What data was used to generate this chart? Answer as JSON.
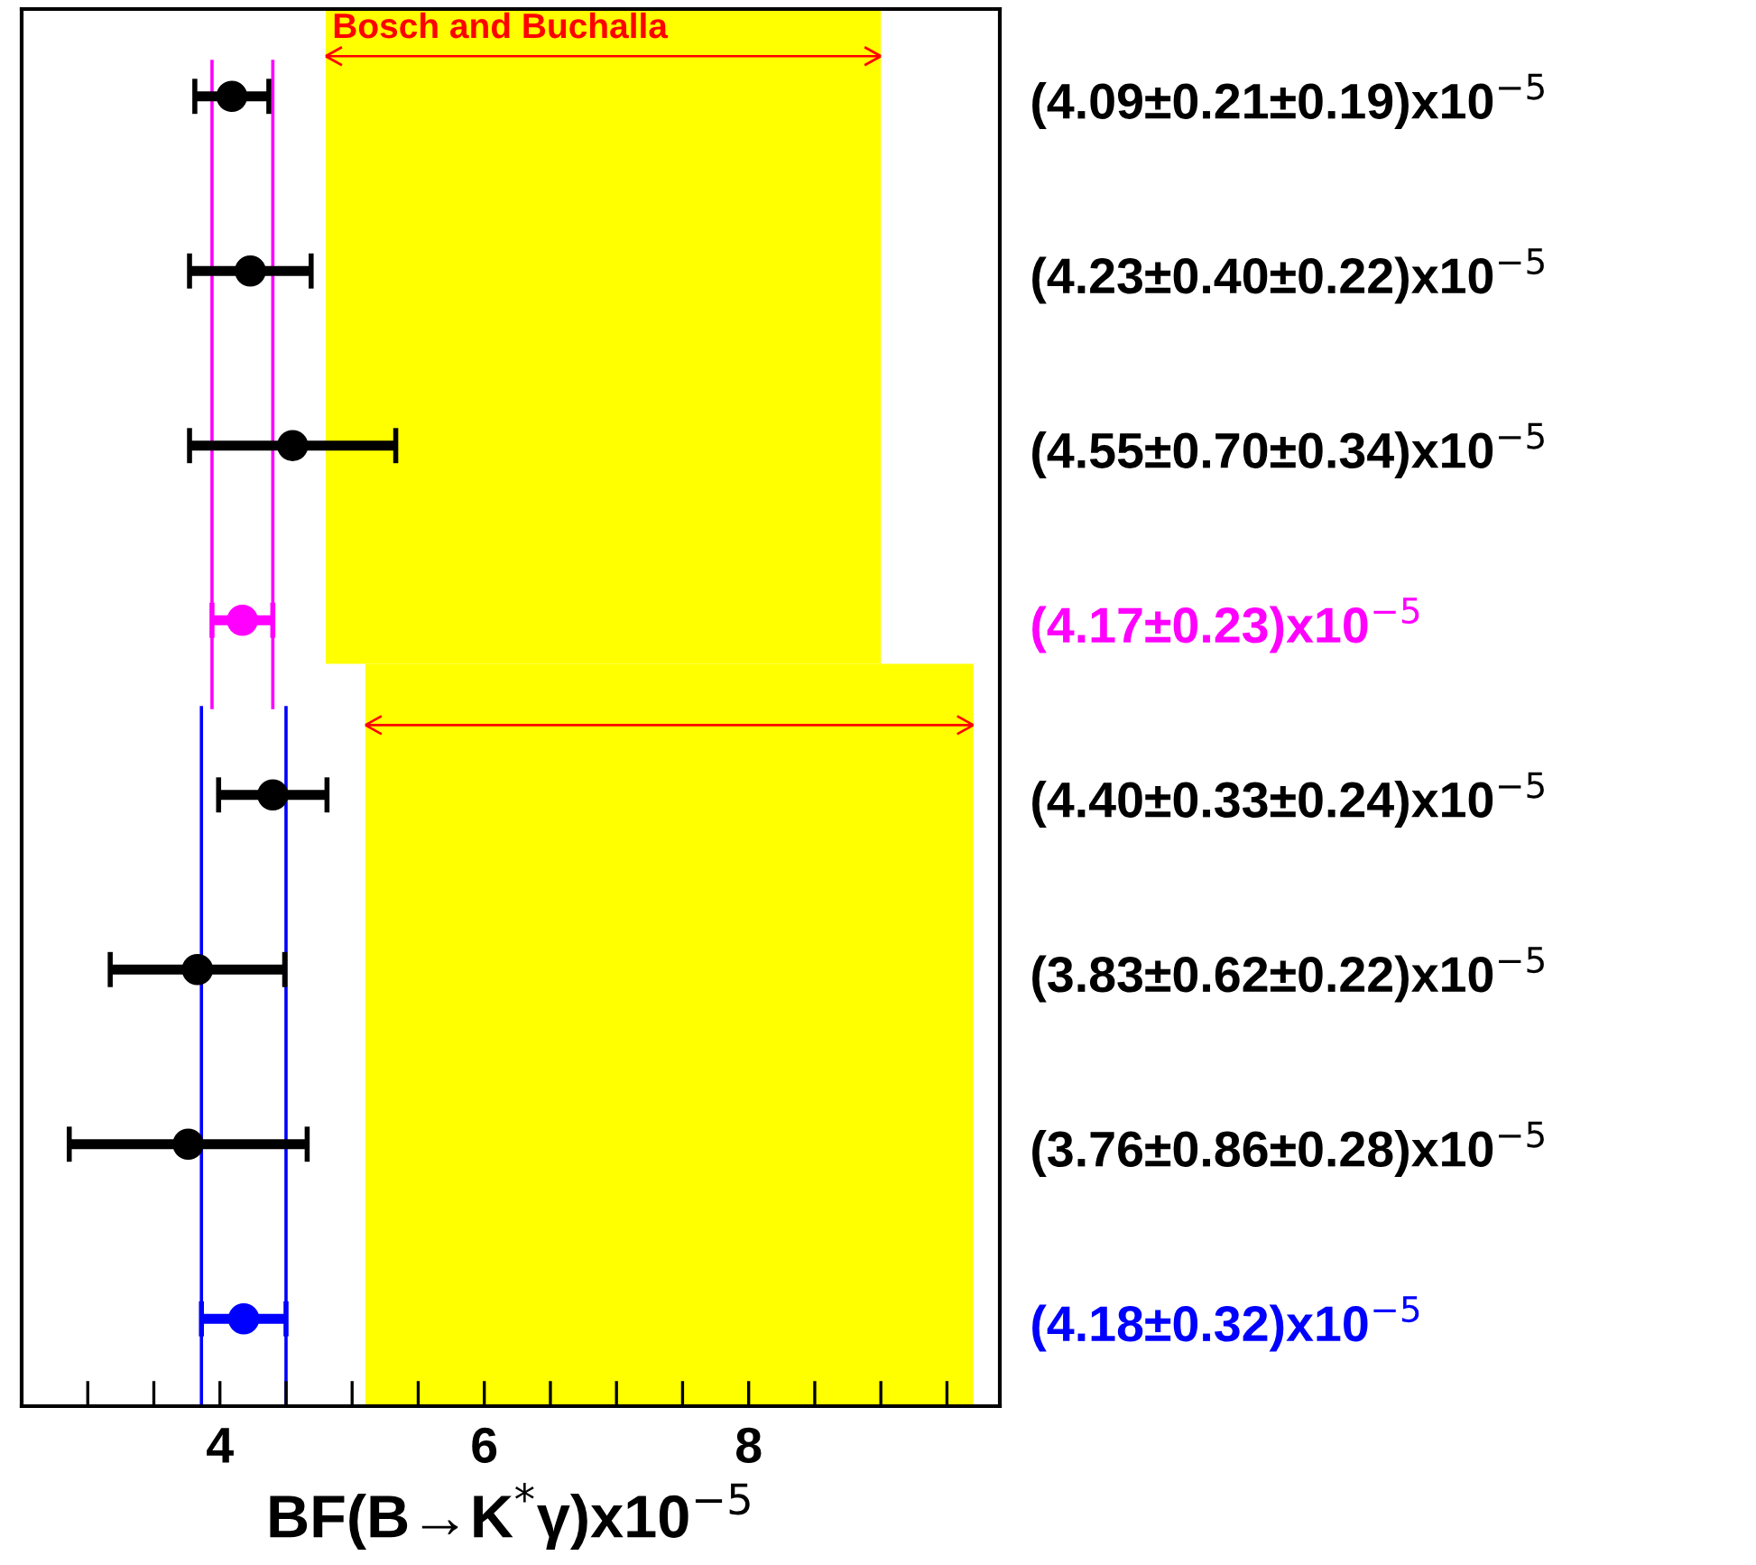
{
  "chart_data": {
    "type": "scatter",
    "orientation": "horizontal",
    "xlabel": "BF(B→K$^{*}$γ)x10$^{−5}$",
    "categories": [
      "(4.09±0.21±0.19)x10$^{−5}$",
      "(4.23±0.40±0.22)x10$^{−5}$",
      "(4.55±0.70±0.34)x10$^{−5}$",
      "(4.17±0.23)x10$^{−5}$",
      "(4.40±0.33±0.24)x10$^{−5}$",
      "(3.83±0.62±0.22)x10$^{−5}$",
      "(3.76±0.86±0.28)x10$^{−5}$",
      "(4.18±0.32)x10$^{−5}$"
    ],
    "series": [
      {
        "color": "#000000",
        "values": [
          4.09,
          4.23,
          4.55,
          null,
          4.4,
          3.83,
          3.76,
          null
        ],
        "errors": [
          0.28,
          0.46,
          0.78,
          null,
          0.41,
          0.66,
          0.9,
          null
        ]
      },
      {
        "color": "#ff00ff",
        "values": [
          null,
          null,
          null,
          4.17,
          null,
          null,
          null,
          null
        ],
        "errors": [
          null,
          null,
          null,
          0.23,
          null,
          null,
          null,
          null
        ]
      },
      {
        "color": "#0000ff",
        "values": [
          null,
          null,
          null,
          null,
          null,
          null,
          null,
          4.18
        ],
        "errors": [
          null,
          null,
          null,
          null,
          null,
          null,
          null,
          0.32
        ]
      }
    ],
    "xlim": [
      2.5,
      9.9
    ],
    "xticks": [
      {
        "value": 3,
        "label": null
      },
      {
        "value": 3.5,
        "label": null
      },
      4,
      {
        "value": 4.5,
        "label": null
      },
      {
        "value": 5,
        "label": null
      },
      {
        "value": 5.5,
        "label": null
      },
      6,
      {
        "value": 6.5,
        "label": null
      },
      {
        "value": 7,
        "label": null
      },
      {
        "value": 7.5,
        "label": null
      },
      8,
      {
        "value": 8.5,
        "label": null
      },
      {
        "value": 9,
        "label": null
      },
      {
        "value": 9.5,
        "label": null
      }
    ],
    "ref_lines": [
      {
        "axis": "x",
        "value": 3.94,
        "color": "#ff00ff"
      },
      {
        "axis": "x",
        "value": 4.4,
        "color": "#ff00ff"
      },
      {
        "axis": "x",
        "value": 3.86,
        "color": "#0000ff"
      },
      {
        "axis": "x",
        "value": 4.5,
        "color": "#0000ff"
      }
    ],
    "bands": [
      {
        "axis": "x",
        "from": 4.8,
        "to": 9.0,
        "label": "Bosch and Buchalla",
        "color": "#ffff00"
      },
      {
        "axis": "x",
        "from": 5.1,
        "to": 9.7,
        "color": "#ffff00"
      }
    ],
    "marker": "circle",
    "grid": false,
    "legend": false
  }
}
